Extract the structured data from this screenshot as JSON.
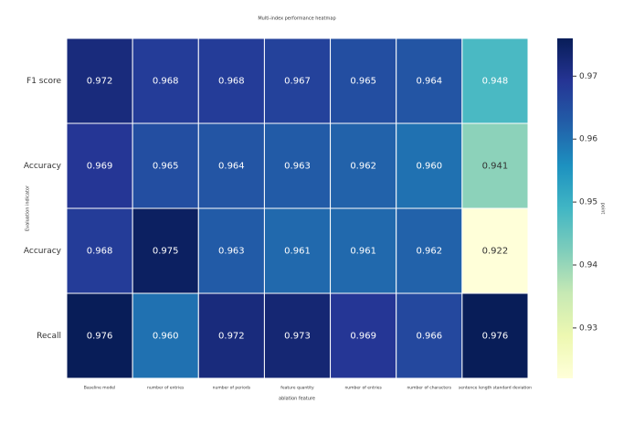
{
  "chart_data": {
    "type": "heatmap",
    "title": "Multi-index performance heatmap",
    "x_label": "ablation feature",
    "y_label": "Evaluation indicator",
    "colorbar_label": "point",
    "categories": [
      "Baseline model",
      "number of entries",
      "number of periods",
      "feature quantity",
      "number of entries",
      "number of characters",
      "sentence length standard deviation"
    ],
    "rows": [
      "F1 score",
      "Accuracy",
      "Accuracy",
      "Recall"
    ],
    "values": [
      [
        0.972,
        0.968,
        0.968,
        0.967,
        0.965,
        0.964,
        0.948
      ],
      [
        0.969,
        0.965,
        0.964,
        0.963,
        0.962,
        0.96,
        0.941
      ],
      [
        0.968,
        0.975,
        0.963,
        0.961,
        0.961,
        0.962,
        0.922
      ],
      [
        0.976,
        0.96,
        0.972,
        0.973,
        0.969,
        0.966,
        0.976
      ]
    ],
    "value_labels": [
      [
        "0.972",
        "0.968",
        "0.968",
        "0.967",
        "0.965",
        "0.964",
        "0.948"
      ],
      [
        "0.969",
        "0.965",
        "0.964",
        "0.963",
        "0.962",
        "0.960",
        "0.941"
      ],
      [
        "0.968",
        "0.975",
        "0.963",
        "0.961",
        "0.961",
        "0.962",
        "0.922"
      ],
      [
        "0.976",
        "0.960",
        "0.972",
        "0.973",
        "0.969",
        "0.966",
        "0.976"
      ]
    ],
    "colormap": "YlGnBu",
    "clim": [
      0.922,
      0.976
    ],
    "cticks": [
      0.93,
      0.94,
      0.95,
      0.96,
      0.97
    ]
  }
}
